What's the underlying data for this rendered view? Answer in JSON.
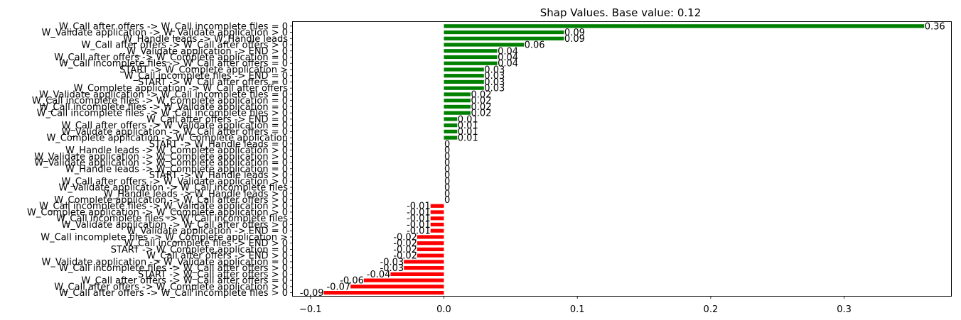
{
  "chart_data": {
    "type": "bar",
    "orientation": "horizontal",
    "title": "Shap Values. Base value: 0.12",
    "xlabel": "",
    "ylabel": "",
    "xlim": [
      -0.11,
      0.38
    ],
    "xticks": [
      -0.1,
      0,
      0.1,
      0.2,
      0.3
    ],
    "xtick_labels": [
      "−0.1",
      "0.0",
      "0.1",
      "0.2",
      "0.3"
    ],
    "grid": false,
    "legend": "none",
    "colors": {
      "positive": "#008000",
      "negative": "#ff0000"
    },
    "categories": [
      "W_Call after offers -> W_Call incomplete files = 0",
      "W_Validate application -> W_Validate application > 0",
      "W_Handle leads -> W_Handle leads",
      "W_Call after offers -> W_Call after offers > 0",
      "W_Validate application -> END > 0",
      "W_Call after offers -> W_Complete application = 0",
      "W_Call incomplete files -> W_Call after offers = 0",
      "START -> W_Complete application >",
      "W_Call incomplete files -> END = 0",
      "START -> W_Call after offers = 0",
      "W_Complete application -> W_Call after offers",
      "W_Validate application -> W_Call incomplete files = 0",
      "W_Call incomplete files -> W_Complete application = 0",
      "W_Call incomplete files -> W_Validate application = 0",
      "W_Call incomplete files -> W_Call incomplete files > 0",
      "W_Call after offers -> END = 0",
      "W_Call after offers -> W_Validate application = 0",
      "W_Validate application -> W_Call after offers = 0",
      "W_Complete application -> W_Complete application",
      "START -> W_Handle leads = 0",
      "W_Handle leads -> W_Complete application > 0",
      "W_Validate application -> W_Complete application > 0",
      "W_Validate application -> W_Complete application = 0",
      "W_Handle leads -> W_Complete application = 0",
      "START -> W_Handle leads > 0",
      "W_Call after offers -> W_Validate application > 0",
      "W_Validate application -> W_Call incomplete files",
      "W_Handle leads -> W_Handle leads > 0",
      "W_Complete application -> W_Call after offers > 0",
      "W_Call incomplete files -> W_Validate application > 0",
      "W_Complete application -> W_Complete application > 0",
      "W_Call incomplete files -> W_Call incomplete files",
      "W_Validate application -> W_Call after offers > 0",
      "W_Validate application -> END = 0",
      "W_Call incomplete files -> W_Complete application >",
      "W_Call incomplete files -> END > 0",
      "START -> W_Complete application = 0",
      "W_Call after offers -> END > 0",
      "W_Validate application -> W_Validate application = 0",
      "W_Call incomplete files -> W_Call after offers > 0",
      "START -> W_Call after offers > 0",
      "W_Call after offers -> W_Call after offers = 0",
      "W_Call after offers -> W_Complete application > 0",
      "W_Call after offers -> W_Call incomplete files > 0"
    ],
    "values": [
      0.36,
      0.09,
      0.09,
      0.06,
      0.04,
      0.04,
      0.04,
      0.03,
      0.03,
      0.03,
      0.03,
      0.02,
      0.02,
      0.02,
      0.02,
      0.01,
      0.01,
      0.01,
      0.01,
      0,
      0,
      0,
      0,
      0,
      0,
      0,
      0,
      0,
      0,
      -0.01,
      -0.01,
      -0.01,
      -0.01,
      -0.01,
      -0.02,
      -0.02,
      -0.02,
      -0.02,
      -0.03,
      -0.03,
      -0.04,
      -0.06,
      -0.07,
      -0.09
    ]
  }
}
